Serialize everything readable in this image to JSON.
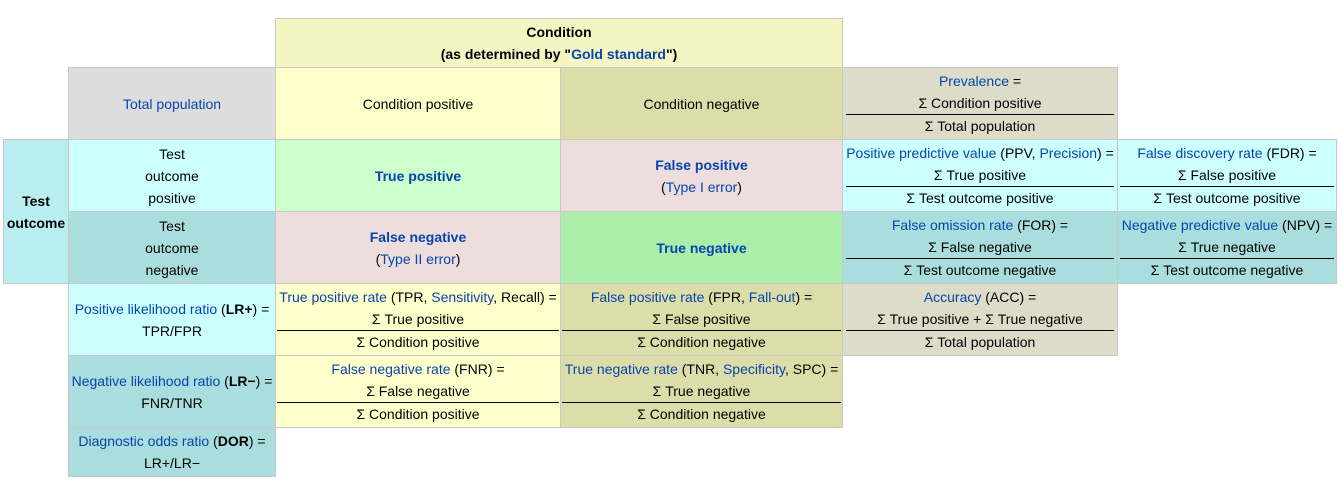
{
  "condition": {
    "title": "Condition",
    "subtitle_prefix": "(as determined by \"",
    "subtitle_link": "Gold standard",
    "subtitle_suffix": "\")"
  },
  "total_population": "Total population",
  "condition_positive": "Condition positive",
  "condition_negative": "Condition negative",
  "prevalence": {
    "label": "Prevalence",
    "eq": " =",
    "num": "Σ Condition positive",
    "den": "Σ Total population"
  },
  "test_outcome": {
    "line1": "Test",
    "line2": "outcome"
  },
  "test_outcome_positive": {
    "line1": "Test",
    "line2": "outcome",
    "line3": "positive"
  },
  "test_outcome_negative": {
    "line1": "Test",
    "line2": "outcome",
    "line3": "negative"
  },
  "true_positive": "True positive",
  "false_positive": {
    "title": "False positive",
    "paren_open": "(",
    "link": "Type I error",
    "paren_close": ")"
  },
  "false_negative": {
    "title": "False negative",
    "paren_open": "(",
    "link": "Type II error",
    "paren_close": ")"
  },
  "true_negative": "True negative",
  "ppv": {
    "label": "Positive predictive value",
    "mid1": " (PPV, ",
    "link2": "Precision",
    "mid2": ") =",
    "num": "Σ True positive",
    "den": "Σ Test outcome positive"
  },
  "fdr": {
    "label": "False discovery rate",
    "mid": " (FDR) =",
    "num": "Σ False positive",
    "den": "Σ Test outcome positive"
  },
  "for": {
    "label": "False omission rate",
    "mid": " (FOR) =",
    "num": "Σ False negative",
    "den": "Σ Test outcome negative"
  },
  "npv": {
    "label": "Negative predictive value",
    "mid": " (NPV) =",
    "num": "Σ True negative",
    "den": "Σ Test outcome negative"
  },
  "lr_pos": {
    "label": "Positive likelihood ratio",
    "mid": " (",
    "bold": "LR+",
    "end": ") =",
    "formula": "TPR/FPR"
  },
  "tpr": {
    "label": "True positive rate",
    "mid1": " (TPR, ",
    "link2": "Sensitivity",
    "mid2": ", Recall) =",
    "num": "Σ True positive",
    "den": "Σ Condition positive"
  },
  "fpr": {
    "label": "False positive rate",
    "mid1": " (FPR, ",
    "link2": "Fall-out",
    "mid2": ") =",
    "num": "Σ False positive",
    "den": "Σ Condition negative"
  },
  "accuracy": {
    "label": "Accuracy",
    "mid": " (ACC) =",
    "num": "Σ True positive + Σ True negative",
    "den": "Σ Total population"
  },
  "lr_neg": {
    "label": "Negative likelihood ratio",
    "mid": " (",
    "bold": "LR−",
    "end": ") =",
    "formula": "FNR/TNR"
  },
  "fnr": {
    "label": "False negative rate",
    "mid": " (FNR) =",
    "num": "Σ False negative",
    "den": "Σ Condition positive"
  },
  "tnr": {
    "label": "True negative rate",
    "mid1": " (TNR, ",
    "link2": "Specificity",
    "mid2": ", SPC) =",
    "num": "Σ True negative",
    "den": "Σ Condition negative"
  },
  "dor": {
    "label": "Diagnostic odds ratio",
    "mid": " (",
    "bold": "DOR",
    "end": ") =",
    "formula": "LR+/LR−"
  }
}
